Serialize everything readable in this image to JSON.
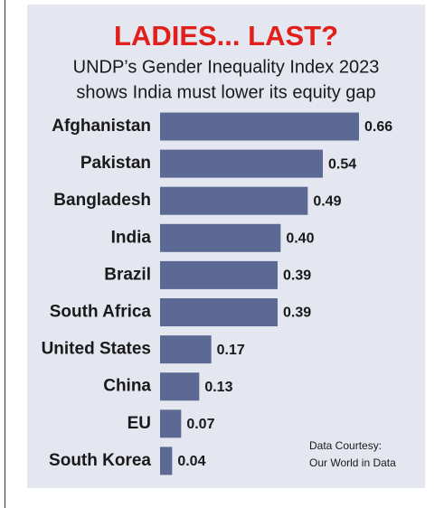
{
  "chart_data": {
    "type": "bar",
    "orientation": "horizontal",
    "title": "LADIES... LAST?",
    "subtitle": [
      "UNDP’s Gender Inequality Index 2023",
      "shows India must lower its equity gap"
    ],
    "categories": [
      "Afghanistan",
      "Pakistan",
      "Bangladesh",
      "India",
      "Brazil",
      "South Africa",
      "United States",
      "China",
      "EU",
      "South Korea"
    ],
    "values": [
      0.66,
      0.54,
      0.49,
      0.4,
      0.39,
      0.39,
      0.17,
      0.13,
      0.07,
      0.04
    ],
    "value_labels": [
      "0.66",
      "0.54",
      "0.49",
      "0.40",
      "0.39",
      "0.39",
      "0.17",
      "0.13",
      "0.07",
      "0.04"
    ],
    "color": "#5b6994",
    "note": [
      "Data Courtesy:",
      "Our World in Data"
    ]
  }
}
